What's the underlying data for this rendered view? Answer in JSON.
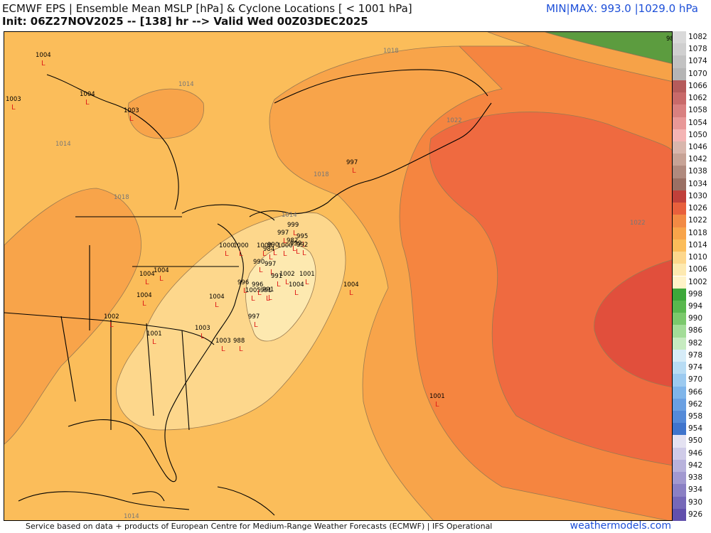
{
  "header": {
    "title": "ECMWF EPS | Ensemble Mean MSLP [hPa] & Cyclone Locations [ < 1001 hPa]",
    "init": "Init: 06Z27NOV2025 -- [138] hr --> Valid Wed 00Z03DEC2025",
    "minmax": "MIN|MAX: 993.0 |1029.0 hPa"
  },
  "footer": {
    "source": "Service based on data + products of European Centre for Medium-Range Weather Forecasts (ECMWF) | IFS Operational",
    "brand": "weathermodels.com"
  },
  "colors": {
    "c1006": "#fde9b0",
    "c1010": "#fdd78c",
    "c1014": "#fbbd5a",
    "c1018": "#f8a44a",
    "c1022": "#f58540",
    "c1026": "#ef6a40",
    "c1030": "#e14f3c",
    "c1034": "#5c9c3f",
    "lowMarker": "#e0201a"
  },
  "isobar_labels": [
    "1014",
    "1014",
    "1018",
    "1018",
    "1018",
    "1022",
    "1022",
    "1014",
    "1014"
  ],
  "low_values": [
    "1004",
    "1004",
    "1003",
    "1003",
    "1004",
    "1004",
    "1004",
    "1002",
    "1001",
    "1000",
    "1000",
    "1004",
    "1005",
    "991",
    "997",
    "996",
    "1003",
    "988",
    "990",
    "997",
    "991",
    "1002",
    "1001",
    "1004",
    "1004",
    "1001",
    "997",
    "988",
    "999",
    "997",
    "995",
    "982",
    "992",
    "990",
    "984",
    "1000",
    "999",
    "1000",
    "1003",
    "991",
    "996"
  ],
  "colorbar": [
    "1082",
    "1078",
    "1074",
    "1070",
    "1066",
    "1062",
    "1058",
    "1054",
    "1050",
    "1046",
    "1042",
    "1038",
    "1034",
    "1030",
    "1026",
    "1022",
    "1018",
    "1014",
    "1010",
    "1006",
    "1002",
    "998",
    "994",
    "990",
    "986",
    "982",
    "978",
    "974",
    "970",
    "966",
    "962",
    "958",
    "954",
    "950",
    "946",
    "942",
    "938",
    "934",
    "930",
    "926"
  ],
  "colorbar_colors": [
    "#d9d9d9",
    "#cfcfcf",
    "#c2c2c2",
    "#b5b5b5",
    "#b55b5b",
    "#c96a6a",
    "#d98080",
    "#e89898",
    "#f4b4b4",
    "#d8b6ac",
    "#c7a396",
    "#b08a7e",
    "#9a7064",
    "#c0403a",
    "#e8603c",
    "#f28a44",
    "#f8a44a",
    "#fbbd5a",
    "#fdd78c",
    "#fde9b0",
    "#fff3c8",
    "#3da83a",
    "#59b84e",
    "#7bc96c",
    "#a3dd98",
    "#c6ebc0",
    "#d6ecf8",
    "#b8dcf4",
    "#9ccaf0",
    "#7fb5ea",
    "#6aa0e2",
    "#548ad8",
    "#3f74cc",
    "#e4e2f2",
    "#cfcbe8",
    "#b8b2dc",
    "#a299d0",
    "#8b80c4",
    "#7668b8",
    "#6250ac"
  ]
}
